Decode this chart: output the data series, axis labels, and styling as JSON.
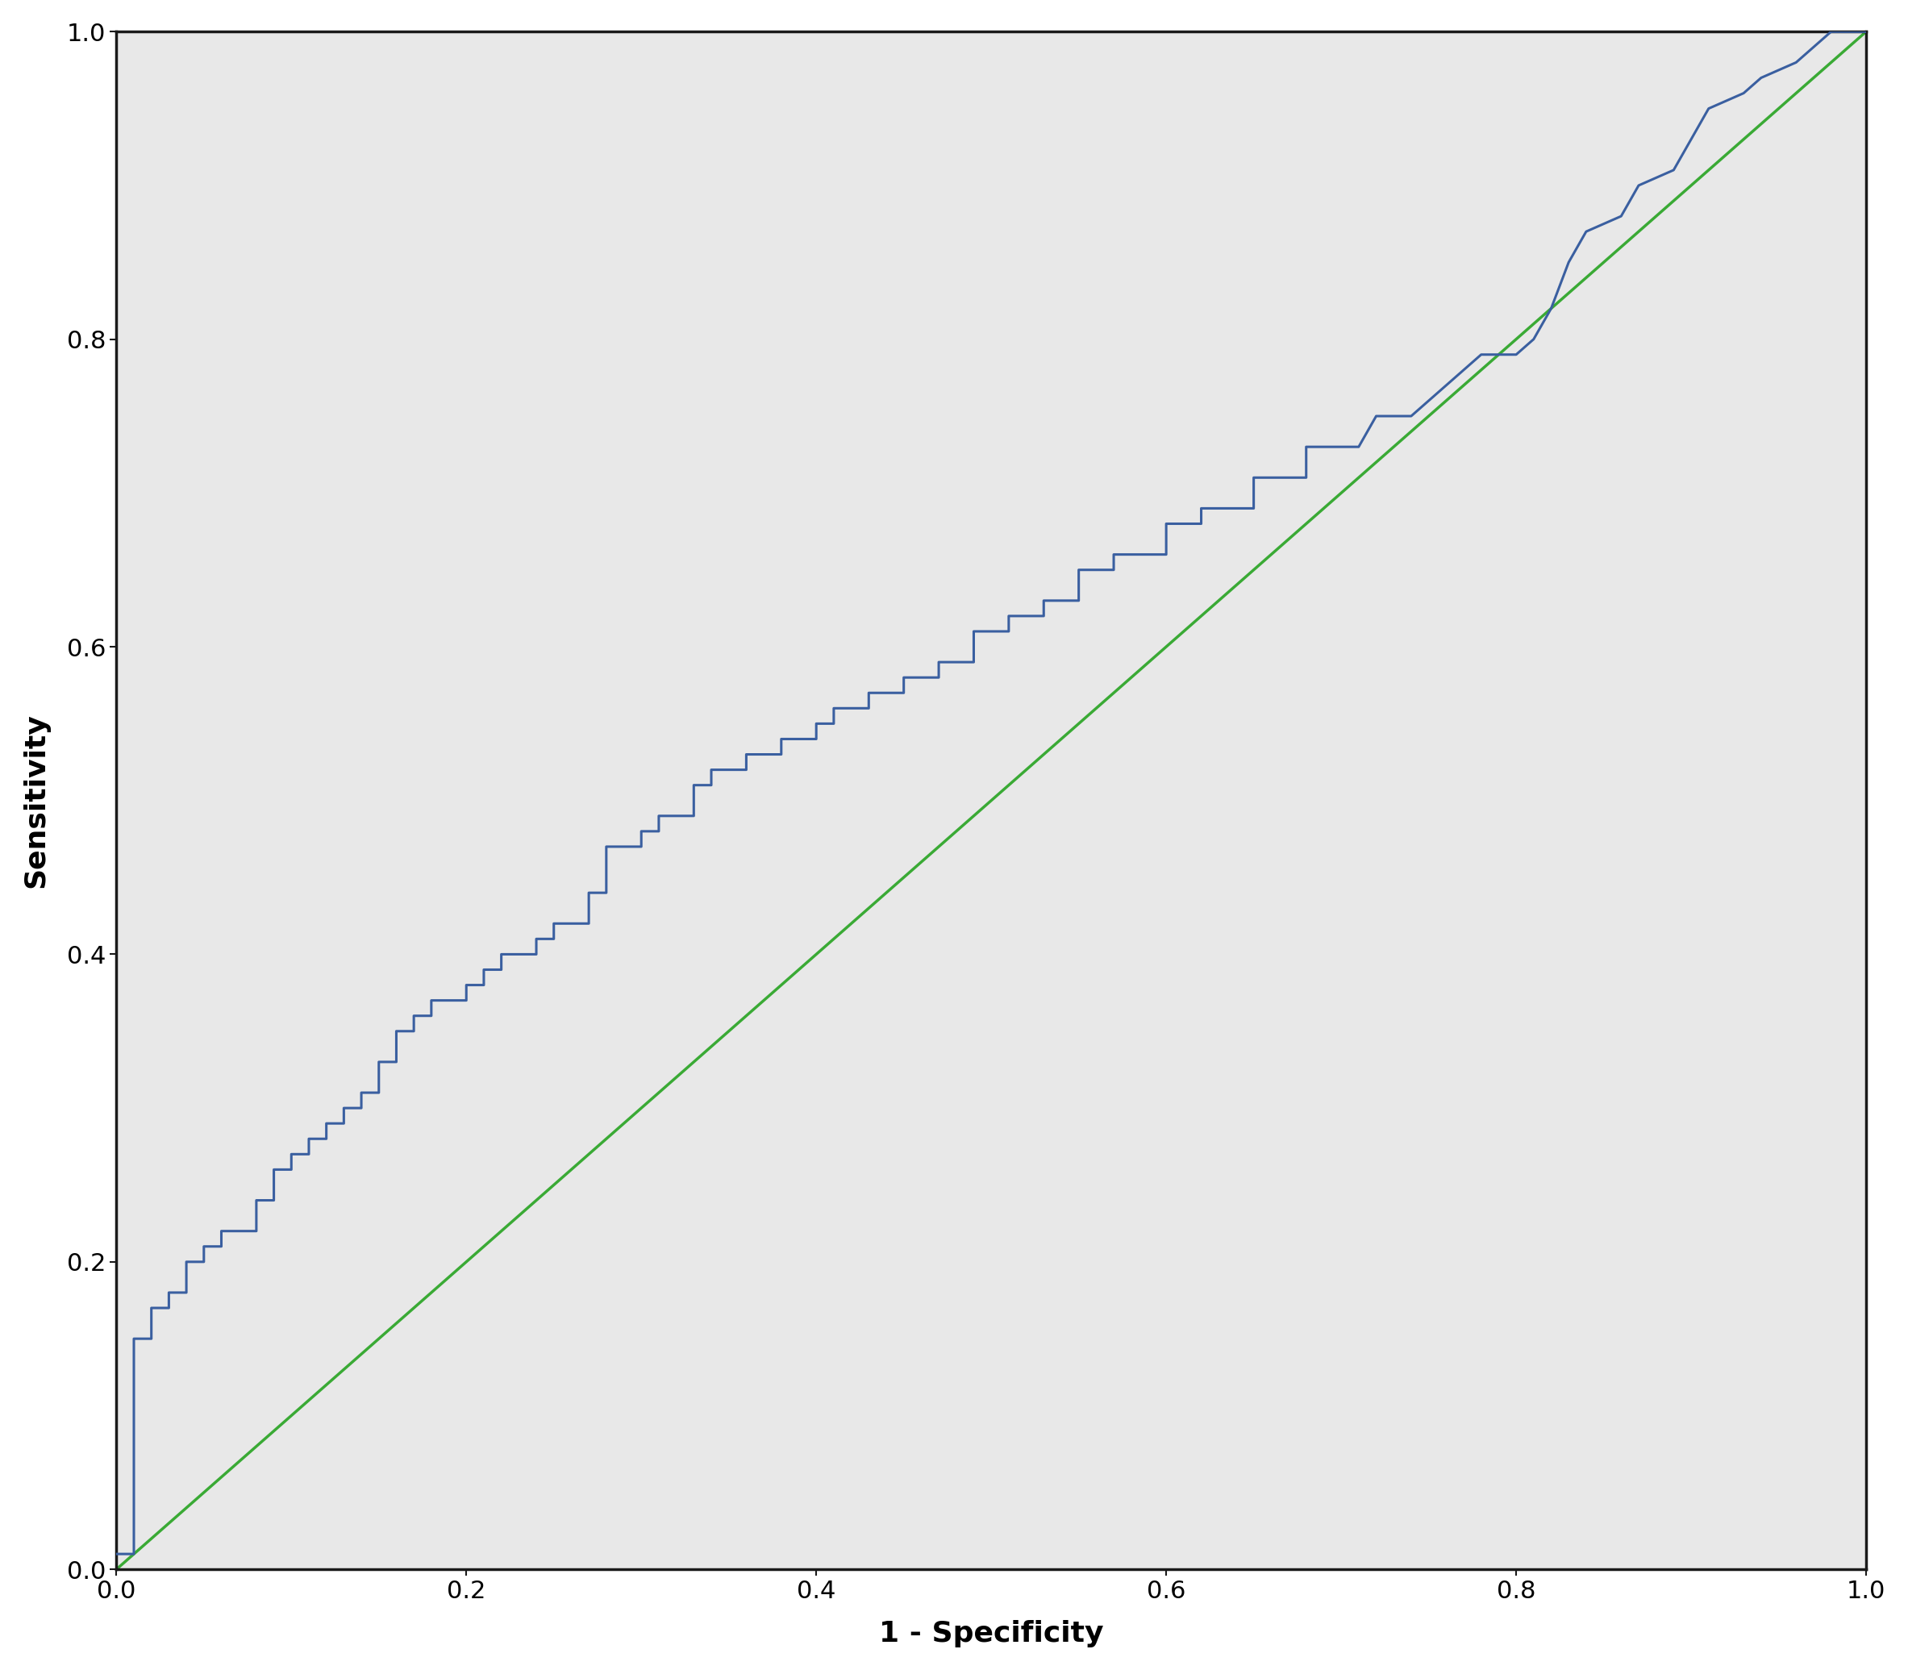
{
  "xlabel": "1 - Specificity",
  "ylabel": "Sensitivity",
  "xlim": [
    0.0,
    1.0
  ],
  "ylim": [
    0.0,
    1.0
  ],
  "xticks": [
    0.0,
    0.2,
    0.4,
    0.6,
    0.8,
    1.0
  ],
  "yticks": [
    0.0,
    0.2,
    0.4,
    0.6,
    0.8,
    1.0
  ],
  "roc_color": "#3a5fa0",
  "diag_color": "#3aaa35",
  "background_color": "#e8e8e8",
  "outer_color": "#ffffff",
  "axis_color": "#1a1a1a",
  "roc_linewidth": 2.2,
  "diag_linewidth": 2.5,
  "tick_fontsize": 22,
  "label_fontsize": 26,
  "roc_x": [
    0.0,
    0.01,
    0.01,
    0.02,
    0.02,
    0.03,
    0.03,
    0.04,
    0.04,
    0.05,
    0.05,
    0.06,
    0.06,
    0.07,
    0.08,
    0.08,
    0.09,
    0.09,
    0.1,
    0.1,
    0.11,
    0.11,
    0.12,
    0.12,
    0.13,
    0.13,
    0.14,
    0.14,
    0.15,
    0.15,
    0.16,
    0.16,
    0.17,
    0.17,
    0.18,
    0.18,
    0.19,
    0.2,
    0.2,
    0.21,
    0.21,
    0.22,
    0.22,
    0.23,
    0.24,
    0.24,
    0.25,
    0.25,
    0.26,
    0.27,
    0.27,
    0.28,
    0.28,
    0.29,
    0.3,
    0.3,
    0.31,
    0.31,
    0.32,
    0.33,
    0.33,
    0.34,
    0.34,
    0.35,
    0.36,
    0.36,
    0.37,
    0.38,
    0.38,
    0.39,
    0.4,
    0.4,
    0.41,
    0.41,
    0.42,
    0.43,
    0.43,
    0.44,
    0.45,
    0.45,
    0.46,
    0.47,
    0.47,
    0.48,
    0.49,
    0.49,
    0.5,
    0.51,
    0.51,
    0.52,
    0.53,
    0.53,
    0.54,
    0.55,
    0.55,
    0.56,
    0.57,
    0.57,
    0.58,
    0.59,
    0.6,
    0.6,
    0.61,
    0.62,
    0.62,
    0.63,
    0.64,
    0.65,
    0.65,
    0.66,
    0.67,
    0.68,
    0.68,
    0.69,
    0.7,
    0.71,
    0.72,
    0.73,
    0.74,
    0.75,
    0.76,
    0.77,
    0.78,
    0.8,
    0.81,
    0.82,
    0.83,
    0.84,
    0.86,
    0.87,
    0.89,
    0.9,
    0.91,
    0.93,
    0.94,
    0.96,
    0.97,
    0.98,
    1.0
  ],
  "roc_y": [
    0.01,
    0.01,
    0.15,
    0.15,
    0.17,
    0.17,
    0.18,
    0.18,
    0.2,
    0.2,
    0.21,
    0.21,
    0.22,
    0.22,
    0.22,
    0.24,
    0.24,
    0.26,
    0.26,
    0.27,
    0.27,
    0.28,
    0.28,
    0.29,
    0.29,
    0.3,
    0.3,
    0.31,
    0.31,
    0.33,
    0.33,
    0.35,
    0.35,
    0.36,
    0.36,
    0.37,
    0.37,
    0.37,
    0.38,
    0.38,
    0.39,
    0.39,
    0.4,
    0.4,
    0.4,
    0.41,
    0.41,
    0.42,
    0.42,
    0.42,
    0.44,
    0.44,
    0.47,
    0.47,
    0.47,
    0.48,
    0.48,
    0.49,
    0.49,
    0.49,
    0.51,
    0.51,
    0.52,
    0.52,
    0.52,
    0.53,
    0.53,
    0.53,
    0.54,
    0.54,
    0.54,
    0.55,
    0.55,
    0.56,
    0.56,
    0.56,
    0.57,
    0.57,
    0.57,
    0.58,
    0.58,
    0.58,
    0.59,
    0.59,
    0.59,
    0.61,
    0.61,
    0.61,
    0.62,
    0.62,
    0.62,
    0.63,
    0.63,
    0.63,
    0.65,
    0.65,
    0.65,
    0.66,
    0.66,
    0.66,
    0.66,
    0.68,
    0.68,
    0.68,
    0.69,
    0.69,
    0.69,
    0.69,
    0.71,
    0.71,
    0.71,
    0.71,
    0.73,
    0.73,
    0.73,
    0.73,
    0.75,
    0.75,
    0.75,
    0.76,
    0.77,
    0.78,
    0.79,
    0.79,
    0.8,
    0.82,
    0.85,
    0.87,
    0.88,
    0.9,
    0.91,
    0.93,
    0.95,
    0.96,
    0.97,
    0.98,
    0.99,
    1.0,
    1.0
  ]
}
